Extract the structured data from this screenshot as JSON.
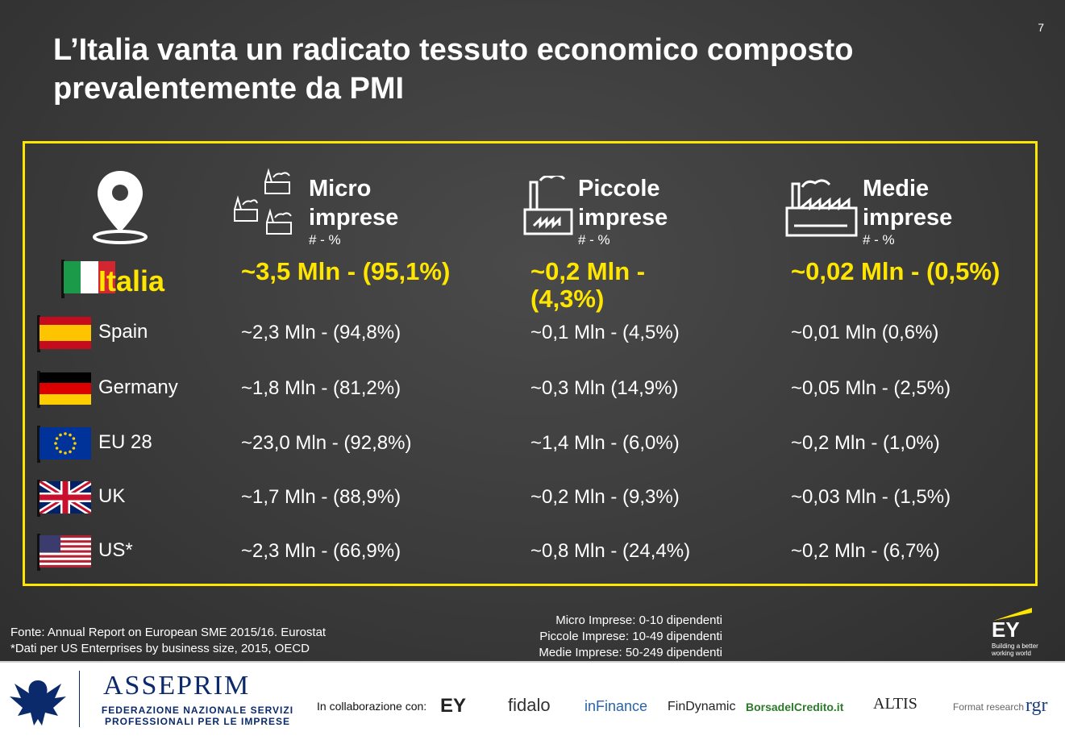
{
  "page_number": "7",
  "title_line1": "L’Italia vanta un radicato tessuto economico composto",
  "title_line2": "prevalentemente da PMI",
  "columns": [
    {
      "label_line1": "Micro",
      "label_line2": "imprese",
      "sub": "# - %"
    },
    {
      "label_line1": "Piccole",
      "label_line2": "imprese",
      "sub": "# - %"
    },
    {
      "label_line1": "Medie",
      "label_line2": "imprese",
      "sub": "# - %"
    }
  ],
  "rows": [
    {
      "country": "Italia",
      "micro": "~3,5 Mln - (95,1%)",
      "piccole": "~0,2 Mln - (4,3%)",
      "medie": "~0,02 Mln - (0,5%)"
    },
    {
      "country": "Spain",
      "micro": "~2,3 Mln - (94,8%)",
      "piccole": "~0,1 Mln - (4,5%)",
      "medie": "~0,01 Mln (0,6%)"
    },
    {
      "country": "Germany",
      "micro": "~1,8 Mln - (81,2%)",
      "piccole": "~0,3 Mln (14,9%)",
      "medie": "~0,05 Mln - (2,5%)"
    },
    {
      "country": "EU 28",
      "micro": "~23,0 Mln - (92,8%)",
      "piccole": "~1,4 Mln - (6,0%)",
      "medie": "~0,2 Mln - (1,0%)"
    },
    {
      "country": "UK",
      "micro": "~1,7 Mln - (88,9%)",
      "piccole": "~0,2 Mln - (9,3%)",
      "medie": "~0,03 Mln - (1,5%)"
    },
    {
      "country": "US*",
      "micro": "~2,3 Mln - (66,9%)",
      "piccole": "~0,8 Mln - (24,4%)",
      "medie": "~0,2 Mln - (6,7%)"
    }
  ],
  "source_line1": "Fonte: Annual Report on European SME 2015/16.  Eurostat",
  "source_line2": "*Dati per US Enterprises by business size, 2015, OECD",
  "legend_line1": "Micro Imprese: 0-10 dipendenti",
  "legend_line2": "Piccole Imprese: 10-49 dipendenti",
  "legend_line3": "Medie Imprese: 50-249 dipendenti",
  "ey_text": "EY",
  "ey_tagline_1": "Building a better",
  "ey_tagline_2": "working world",
  "footer": {
    "org_name": "ASSEPRIM",
    "org_desc_1": "FEDERAZIONE NAZIONALE SERVIZI",
    "org_desc_2": "PROFESSIONALI PER LE IMPRESE",
    "collab_label": "In collaborazione con:",
    "partners": [
      "EY",
      "fidalo",
      "inFinance",
      "FinDynamic",
      "BorsadelCredito.it",
      "ALTIS",
      "Format research",
      "rgr"
    ]
  },
  "colors": {
    "accent": "#ffe600",
    "text": "#ffffff",
    "brand_blue": "#0b2a6b"
  },
  "icons": [
    "location-pin-icon",
    "micro-factory-icon",
    "small-factory-icon",
    "medium-factory-icon"
  ]
}
